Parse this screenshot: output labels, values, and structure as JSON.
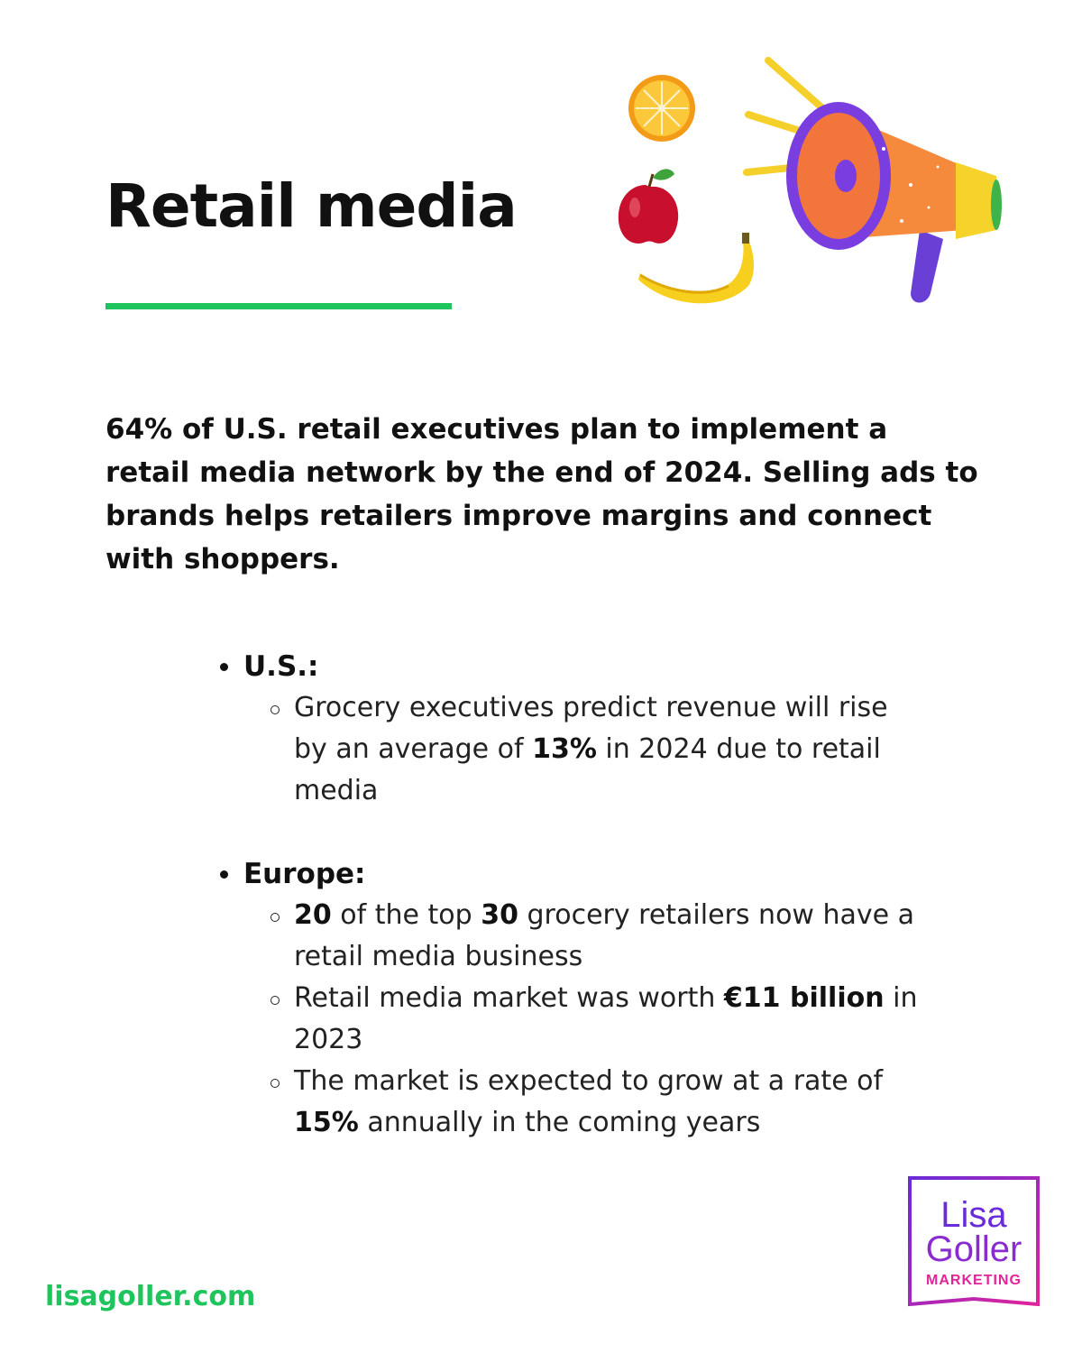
{
  "title": "Retail media",
  "intro": "64% of U.S. retail executives plan to implement a retail media network by the end of 2024. Selling ads to brands helps retailers improve margins and connect with shoppers.",
  "sections": [
    {
      "heading": "U.S.:",
      "items": [
        [
          "Grocery executives predict revenue will rise by an average of ",
          "13%",
          " in 2024 due to retail media"
        ]
      ]
    },
    {
      "heading": "Europe:",
      "items": [
        [
          "",
          "20",
          " of the top ",
          "30",
          " grocery retailers now have a retail media business"
        ],
        [
          "Retail media market was worth ",
          "€11 billion",
          " in 2023"
        ],
        [
          "The market is expected to grow at a rate of ",
          "15%",
          " annually in the coming years"
        ]
      ]
    }
  ],
  "footer_url": "lisagoller.com",
  "logo": {
    "line1": "Lisa",
    "line2": "Goller",
    "line3": "MARKETING"
  },
  "colors": {
    "accent_green": "#1ec45c",
    "logo_purple": "#6a2bd9",
    "logo_pink": "#e0249a"
  },
  "illustration_icons": [
    "orange-slice-icon",
    "apple-icon",
    "banana-icon",
    "megaphone-icon"
  ]
}
